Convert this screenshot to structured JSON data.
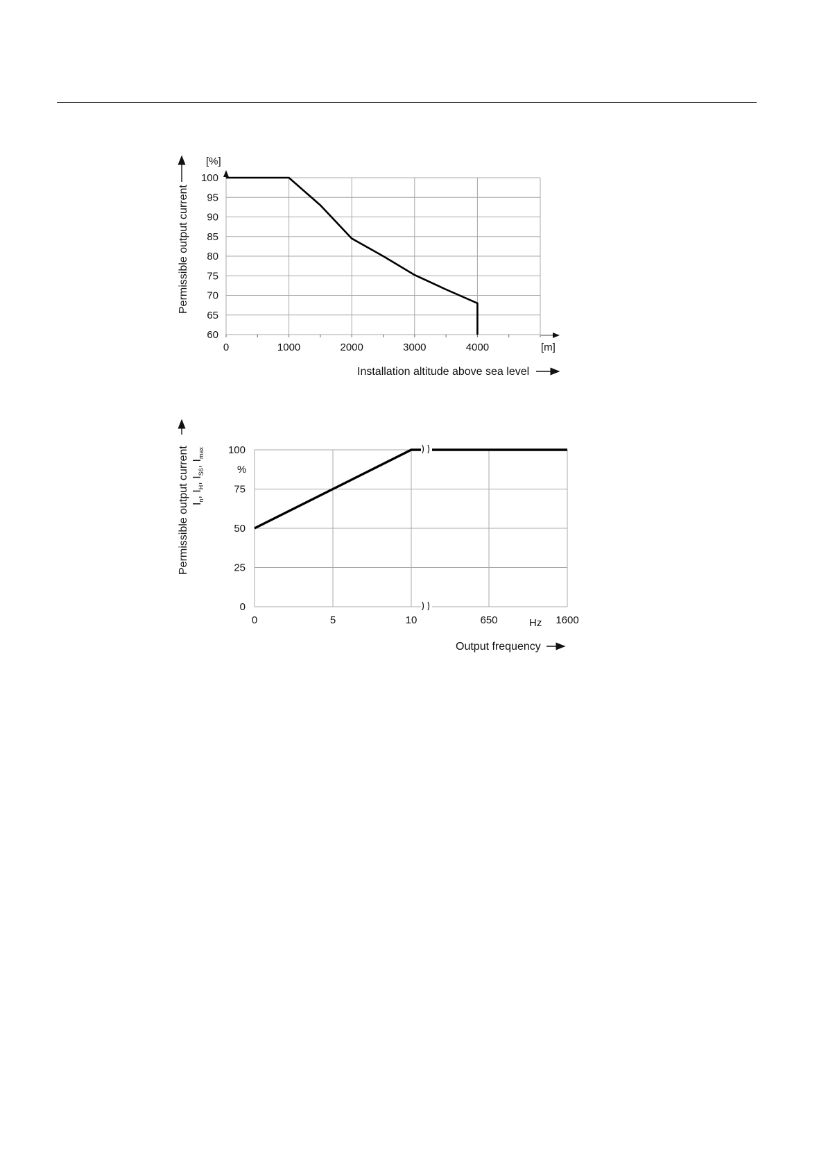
{
  "page": {
    "header_rule": true
  },
  "charts": [
    {
      "ylabel": "Permissible output current",
      "yunit": "[%]",
      "xunit": "[m]",
      "xlabel": "Installation altitude above sea level"
    },
    {
      "ylabel": "Permissible output current",
      "ylabel_sub": [
        "I",
        "n",
        ", I",
        "H",
        ", I",
        "S6",
        ", I",
        "max"
      ],
      "yunit": "%",
      "xunit": "Hz",
      "xlabel": "Output frequency"
    }
  ],
  "chart_data": [
    {
      "type": "line",
      "x_ticks": [
        "0",
        "1000",
        "2000",
        "3000",
        "4000"
      ],
      "y_ticks": [
        "60",
        "65",
        "70",
        "75",
        "80",
        "85",
        "90",
        "95",
        "100"
      ],
      "xlim": [
        0,
        5000
      ],
      "ylim": [
        60,
        100
      ],
      "grid": true,
      "series": [
        {
          "x": [
            0,
            1000,
            1500,
            2000,
            2500,
            3000,
            3500,
            4000,
            4000
          ],
          "y": [
            100,
            100,
            93,
            84.5,
            80,
            75.2,
            71.5,
            68,
            60
          ]
        }
      ]
    },
    {
      "type": "line",
      "x_ticks": [
        "0",
        "5",
        "10",
        "650",
        "1600"
      ],
      "y_ticks": [
        "0",
        "25",
        "50",
        "75",
        "100"
      ],
      "ylim": [
        0,
        100
      ],
      "x_axis_break": "between 10 and 650",
      "grid": true,
      "series": [
        {
          "x": [
            0,
            10,
            650,
            1600
          ],
          "y": [
            50,
            100,
            100,
            100
          ]
        }
      ]
    }
  ]
}
